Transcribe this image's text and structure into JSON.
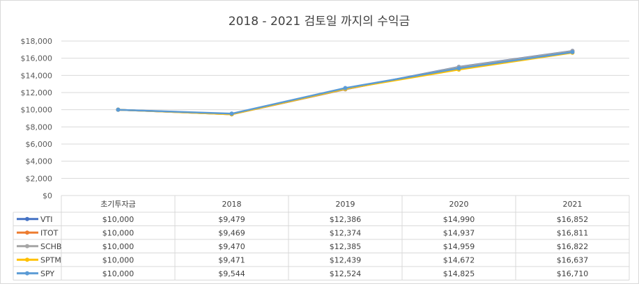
{
  "chart_data": {
    "type": "line",
    "title": "2018 - 2021 검토일 까지의 수익금",
    "categories": [
      "초기투자금",
      "2018",
      "2019",
      "2020",
      "2021"
    ],
    "y_ticks": [
      "$0",
      "$2,000",
      "$4,000",
      "$6,000",
      "$8,000",
      "$10,000",
      "$12,000",
      "$14,000",
      "$16,000",
      "$18,000"
    ],
    "ylim": [
      0,
      18000
    ],
    "grid": true,
    "legend": "data table",
    "series": [
      {
        "name": "VTI",
        "color": "#4472c4",
        "values": [
          10000,
          9479,
          12386,
          14990,
          16852
        ],
        "labels": [
          "$10,000",
          "$9,479",
          "$12,386",
          "$14,990",
          "$16,852"
        ]
      },
      {
        "name": "ITOT",
        "color": "#ed7d31",
        "values": [
          10000,
          9469,
          12374,
          14937,
          16811
        ],
        "labels": [
          "$10,000",
          "$9,469",
          "$12,374",
          "$14,937",
          "$16,811"
        ]
      },
      {
        "name": "SCHB",
        "color": "#a5a5a5",
        "values": [
          10000,
          9470,
          12385,
          14959,
          16822
        ],
        "labels": [
          "$10,000",
          "$9,470",
          "$12,385",
          "$14,959",
          "$16,822"
        ]
      },
      {
        "name": "SPTM",
        "color": "#ffc000",
        "values": [
          10000,
          9471,
          12439,
          14672,
          16637
        ],
        "labels": [
          "$10,000",
          "$9,471",
          "$12,439",
          "$14,672",
          "$16,637"
        ]
      },
      {
        "name": "SPY",
        "color": "#5b9bd5",
        "values": [
          10000,
          9544,
          12524,
          14825,
          16710
        ],
        "labels": [
          "$10,000",
          "$9,544",
          "$12,524",
          "$14,825",
          "$16,710"
        ]
      }
    ]
  }
}
